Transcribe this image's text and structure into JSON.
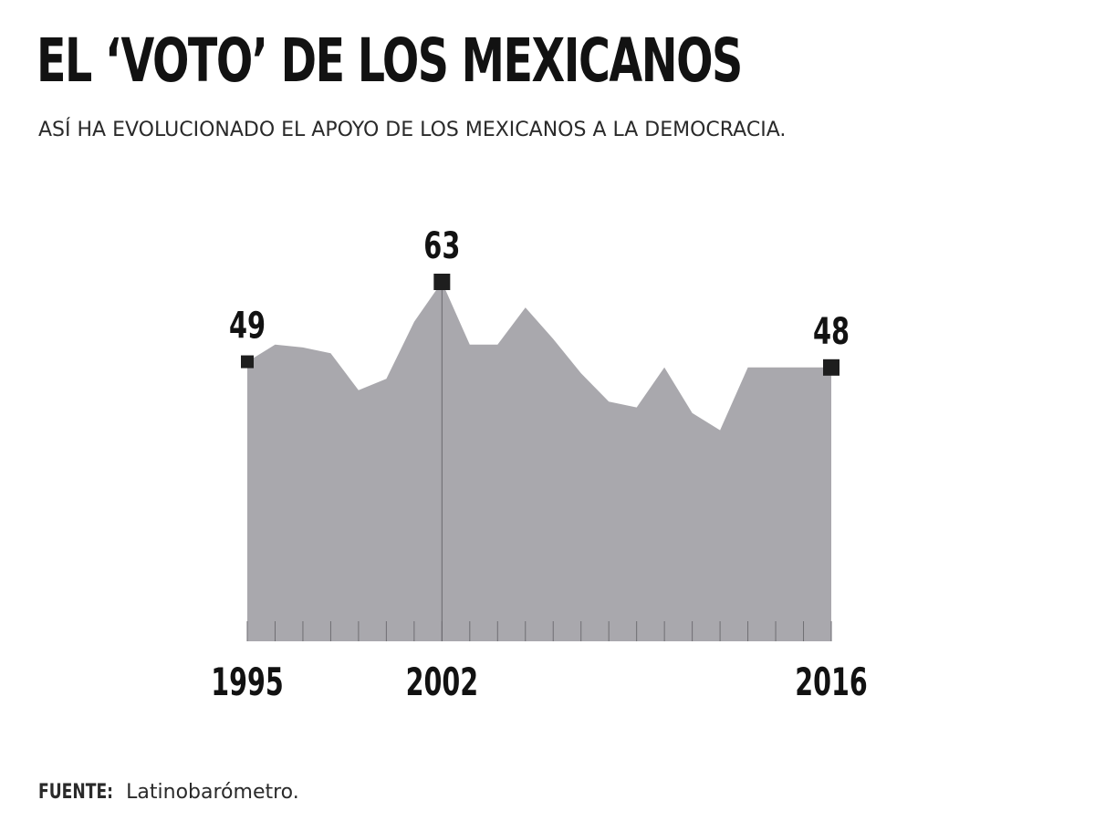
{
  "header": {
    "title": "EL ‘VOTO’ DE LOS MEXICANOS",
    "subtitle": "ASÍ HA EVOLUCIONADO EL APOYO DE LOS MEXICANOS A LA DEMOCRACIA."
  },
  "footer": {
    "source_label": "FUENTE:",
    "source_text": "Latinobarómetro."
  },
  "colors": {
    "area_fill": "#a9a8ad",
    "marker": "#1e1e1e",
    "text": "#121212"
  },
  "chart_data": {
    "type": "area",
    "title": "EL ‘VOTO’ DE LOS MEXICANOS",
    "subtitle": "ASÍ HA EVOLUCIONADO EL APOYO DE LOS MEXICANOS A LA DEMOCRACIA.",
    "xlabel": "",
    "ylabel": "",
    "x": [
      1995,
      1996,
      1997,
      1998,
      1999,
      2000,
      2001,
      2002,
      2003,
      2004,
      2005,
      2006,
      2007,
      2008,
      2009,
      2010,
      2011,
      2012,
      2013,
      2014,
      2015,
      2016
    ],
    "values": [
      49,
      52,
      51.5,
      50.5,
      44,
      46,
      56,
      63,
      52,
      52,
      58.5,
      53,
      47,
      42,
      41,
      48,
      40,
      37,
      48,
      48,
      48,
      48
    ],
    "ylim": [
      0,
      63
    ],
    "labeled_ticks": [
      "1995",
      "2002",
      "2016"
    ],
    "annotations": [
      {
        "x": 1995,
        "value": 49,
        "label": "49"
      },
      {
        "x": 2002,
        "value": 63,
        "label": "63"
      },
      {
        "x": 2016,
        "value": 48,
        "label": "48"
      }
    ],
    "grid": false,
    "legend": "none"
  }
}
